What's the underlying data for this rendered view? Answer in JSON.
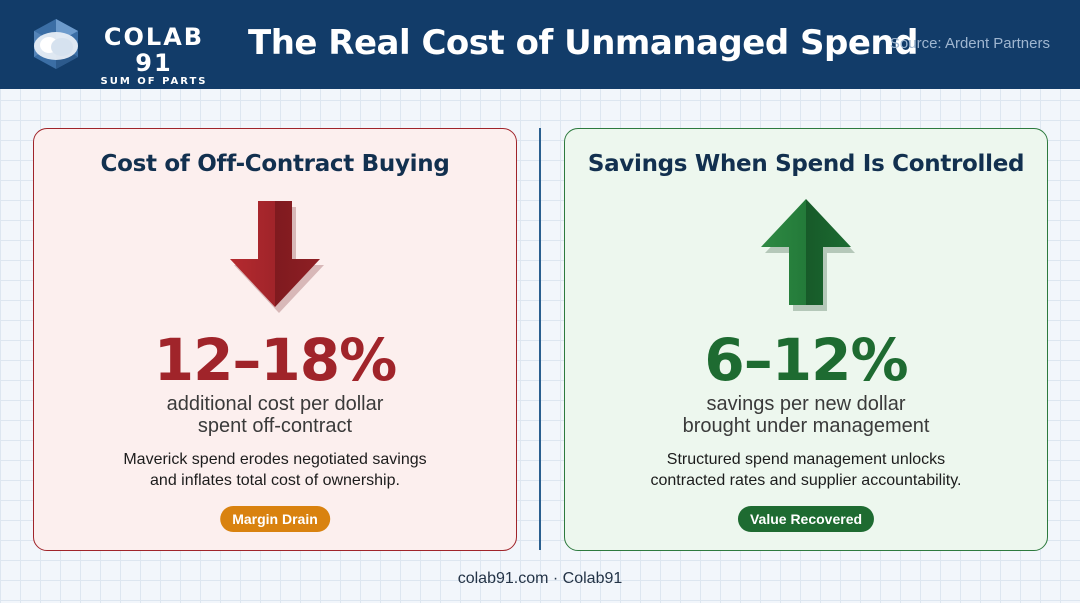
{
  "header": {
    "logo": {
      "name": "COLAB 91",
      "tagline": "SUM OF PARTS"
    },
    "title": "The Real Cost of Unmanaged Spend",
    "source": "Source: Ardent Partners"
  },
  "panels": [
    {
      "title": "Cost of Off-Contract Buying",
      "icon": "arrow-down-icon",
      "figure": "12–18%",
      "subtitle": [
        "additional cost per dollar",
        "spent off-contract"
      ],
      "description": [
        "Maverick spend erodes negotiated savings",
        "and inflates total cost of ownership."
      ],
      "badge": "Margin Drain",
      "accent": "#a0242a",
      "badge_color": "#d9820f"
    },
    {
      "title": "Savings When Spend Is Controlled",
      "icon": "arrow-up-icon",
      "figure": "6–12%",
      "subtitle": [
        "savings per new dollar",
        "brought under management"
      ],
      "description": [
        "Structured spend management unlocks",
        "contracted rates and supplier accountability."
      ],
      "badge": "Value Recovered",
      "accent": "#1e6b31",
      "badge_color": "#1e6b31"
    }
  ],
  "footer": "colab91.com · Colab91"
}
